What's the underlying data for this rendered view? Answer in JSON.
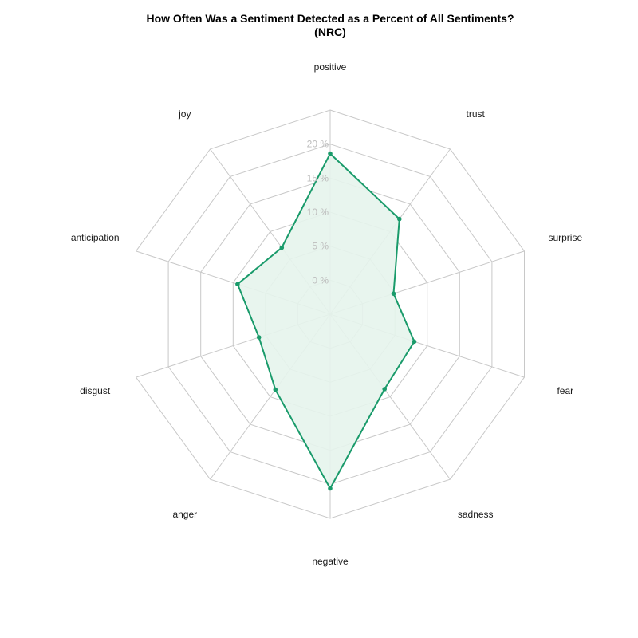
{
  "chart_data": {
    "type": "radar",
    "title": "How Often Was a Sentiment Detected as a Percent of All Sentiments?",
    "subtitle": "(NRC)",
    "axes": [
      "positive",
      "trust",
      "surprise",
      "fear",
      "sadness",
      "negative",
      "anger",
      "disgust",
      "anticipation",
      "joy"
    ],
    "ticks": [
      "0 %",
      "5 %",
      "10 %",
      "15 %",
      "20 %"
    ],
    "tick_values": [
      0,
      5,
      10,
      15,
      20
    ],
    "range": [
      -5,
      25
    ],
    "series": [
      {
        "values": [
          18.6,
          12.3,
          4.8,
          8.0,
          8.6,
          20.6,
          8.7,
          6.0,
          9.3,
          7.1
        ]
      }
    ],
    "colors": {
      "series_line": "#1a9b6b",
      "series_fill": "#e6f4ec",
      "grid": "#c8c8c8",
      "tick_text": "#bdbdbd"
    },
    "legend": "none"
  }
}
